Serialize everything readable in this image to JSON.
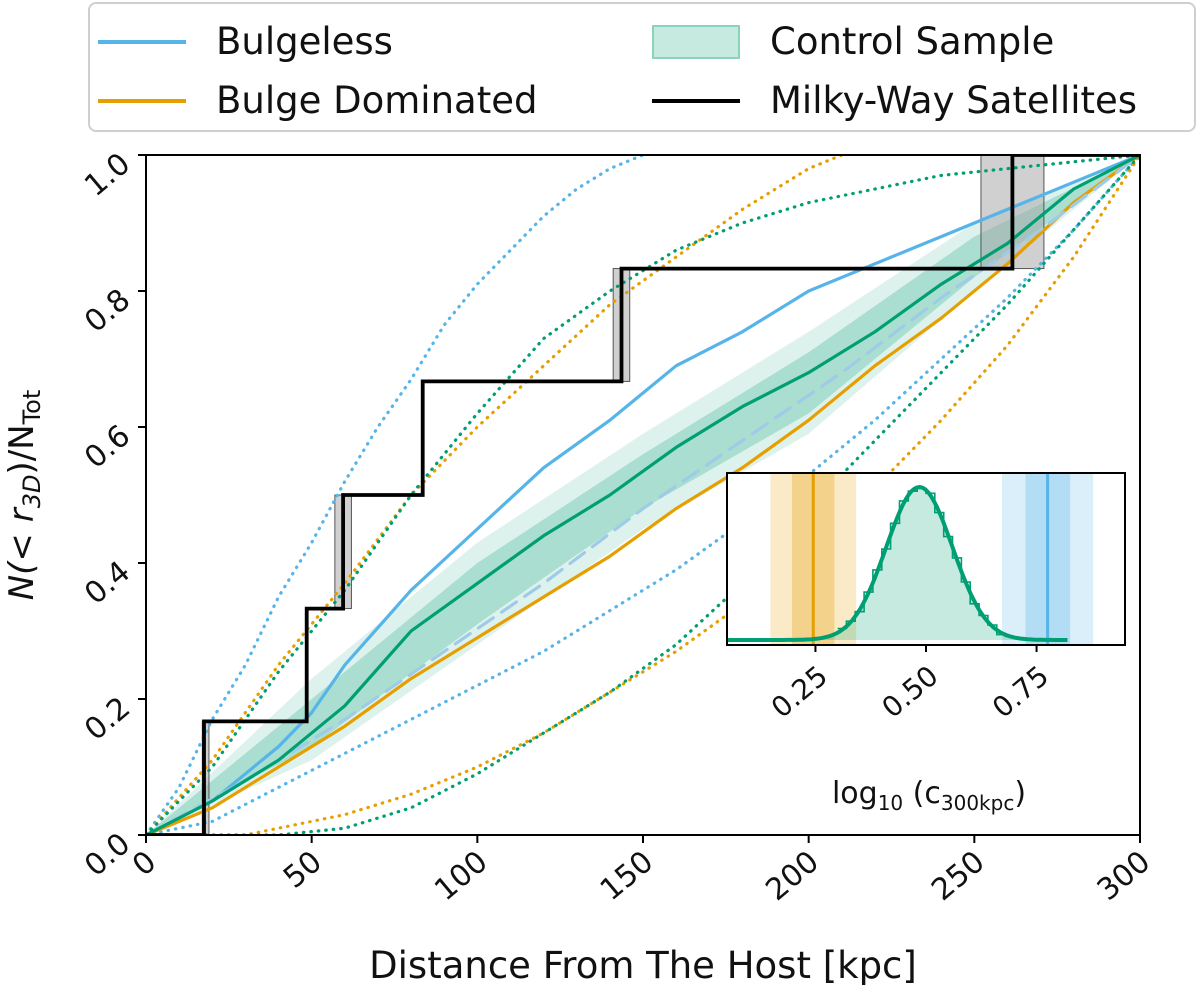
{
  "legend": {
    "items": [
      {
        "label": "Bulgeless",
        "color": "#56B4E9",
        "kind": "line"
      },
      {
        "label": "Bulge Dominated",
        "color": "#E69F00",
        "kind": "line"
      },
      {
        "label": "Control Sample",
        "color": "#009E73",
        "kind": "band"
      },
      {
        "label": "Milky-Way Satellites",
        "color": "#000000",
        "kind": "line"
      }
    ]
  },
  "chart_data": [
    {
      "type": "line",
      "xlabel": "Distance From The Host [kpc]",
      "ylabel_main": "N(< r",
      "ylabel_sub": "3D",
      "ylabel_end": ")/N",
      "ylabel_sub2": "Tot",
      "xlim": [
        0,
        300
      ],
      "ylim": [
        0,
        1
      ],
      "xticks": [
        "0",
        "50",
        "100",
        "150",
        "200",
        "250",
        "300"
      ],
      "yticks": [
        "0.0",
        "0.2",
        "0.4",
        "0.6",
        "0.8",
        "1.0"
      ],
      "grid": false,
      "legend_position": "top (outside)",
      "colors": {
        "bulgeless": "#56B4E9",
        "bulge": "#E69F00",
        "control": "#009E73",
        "mw": "#000000",
        "mw_band": "#a9a9a9"
      },
      "series": [
        {
          "name": "Bulgeless",
          "style": "solid",
          "x": [
            0,
            20,
            40,
            50,
            60,
            80,
            100,
            120,
            140,
            150,
            160,
            180,
            200,
            220,
            240,
            260,
            280,
            300
          ],
          "y": [
            0,
            0.05,
            0.13,
            0.18,
            0.25,
            0.36,
            0.45,
            0.54,
            0.61,
            0.65,
            0.69,
            0.74,
            0.8,
            0.84,
            0.88,
            0.92,
            0.96,
            1.0
          ]
        },
        {
          "name": "Bulgeless 16th percentile",
          "style": "dotted",
          "x": [
            0,
            20,
            40,
            60,
            80,
            100,
            120,
            140,
            160,
            180,
            200,
            220,
            240,
            260,
            280,
            300
          ],
          "y": [
            0,
            0.02,
            0.07,
            0.12,
            0.17,
            0.22,
            0.27,
            0.33,
            0.39,
            0.46,
            0.53,
            0.61,
            0.7,
            0.79,
            0.89,
            1.0
          ]
        },
        {
          "name": "Bulgeless 84th percentile",
          "style": "dotted",
          "x": [
            0,
            10,
            20,
            30,
            40,
            50,
            60,
            70,
            80,
            90,
            100,
            110,
            120,
            130,
            140,
            150
          ],
          "y": [
            0,
            0.07,
            0.17,
            0.25,
            0.35,
            0.43,
            0.52,
            0.6,
            0.67,
            0.75,
            0.81,
            0.86,
            0.91,
            0.95,
            0.98,
            1.0
          ]
        },
        {
          "name": "Bulge Dominated",
          "style": "solid",
          "x": [
            0,
            20,
            40,
            60,
            80,
            100,
            120,
            140,
            160,
            180,
            200,
            220,
            240,
            260,
            280,
            300
          ],
          "y": [
            0,
            0.04,
            0.1,
            0.16,
            0.23,
            0.29,
            0.35,
            0.41,
            0.48,
            0.54,
            0.61,
            0.69,
            0.76,
            0.84,
            0.93,
            1.0
          ]
        },
        {
          "name": "Bulge Dominated 16th percentile",
          "style": "dotted",
          "x": [
            0,
            30,
            60,
            80,
            100,
            120,
            140,
            160,
            180,
            200,
            220,
            240,
            260,
            280,
            300
          ],
          "y": [
            0,
            0.0,
            0.03,
            0.06,
            0.1,
            0.15,
            0.21,
            0.27,
            0.34,
            0.42,
            0.51,
            0.61,
            0.72,
            0.85,
            1.0
          ]
        },
        {
          "name": "Bulge Dominated 84th percentile",
          "style": "dotted",
          "x": [
            0,
            20,
            40,
            60,
            80,
            100,
            120,
            140,
            160,
            180,
            200,
            210
          ],
          "y": [
            0,
            0.11,
            0.25,
            0.37,
            0.5,
            0.6,
            0.69,
            0.78,
            0.85,
            0.92,
            0.98,
            1.0
          ]
        },
        {
          "name": "Control Sample median",
          "style": "dashed",
          "x": [
            0,
            30,
            60,
            90,
            120,
            150,
            180,
            210,
            240,
            270,
            300
          ],
          "y": [
            0,
            0.08,
            0.17,
            0.27,
            0.37,
            0.48,
            0.58,
            0.68,
            0.79,
            0.89,
            1.0
          ]
        },
        {
          "name": "Control Sample example",
          "style": "solid",
          "x": [
            0,
            20,
            40,
            60,
            80,
            100,
            120,
            140,
            160,
            180,
            200,
            220,
            240,
            260,
            280,
            300
          ],
          "y": [
            0,
            0.05,
            0.11,
            0.19,
            0.3,
            0.37,
            0.44,
            0.5,
            0.57,
            0.63,
            0.68,
            0.74,
            0.81,
            0.87,
            0.95,
            1.0
          ]
        },
        {
          "name": "Control Sample 16th percentile",
          "style": "dotted",
          "x": [
            0,
            40,
            60,
            80,
            100,
            120,
            140,
            160,
            180,
            200,
            220,
            240,
            260,
            280,
            300
          ],
          "y": [
            0,
            0.0,
            0.01,
            0.04,
            0.09,
            0.15,
            0.21,
            0.28,
            0.37,
            0.48,
            0.58,
            0.68,
            0.78,
            0.89,
            1.0
          ]
        },
        {
          "name": "Control Sample 84th percentile",
          "style": "dotted",
          "x": [
            0,
            20,
            40,
            60,
            80,
            100,
            120,
            140,
            160,
            180,
            200,
            220,
            240,
            260,
            280,
            300
          ],
          "y": [
            0,
            0.1,
            0.24,
            0.36,
            0.5,
            0.62,
            0.73,
            0.8,
            0.86,
            0.9,
            0.93,
            0.95,
            0.97,
            0.98,
            0.99,
            1.0
          ]
        }
      ],
      "control_band_inner": {
        "x": [
          0,
          50,
          100,
          150,
          200,
          250,
          300
        ],
        "lower": [
          0,
          0.13,
          0.31,
          0.48,
          0.62,
          0.82,
          1.0
        ],
        "upper": [
          0,
          0.2,
          0.4,
          0.56,
          0.71,
          0.88,
          1.0
        ]
      },
      "control_band_outer": {
        "x": [
          0,
          50,
          100,
          150,
          200,
          250,
          300
        ],
        "lower": [
          0,
          0.11,
          0.28,
          0.45,
          0.59,
          0.8,
          1.0
        ],
        "upper": [
          0,
          0.23,
          0.43,
          0.59,
          0.74,
          0.9,
          1.0
        ]
      },
      "milky_way_step": {
        "x": [
          0,
          17.5,
          17.5,
          48.5,
          48.5,
          59.5,
          59.5,
          83.5,
          83.5,
          143.5,
          143.5,
          261.5,
          261.5,
          300
        ],
        "y": [
          0,
          0,
          0.167,
          0.167,
          0.333,
          0.333,
          0.5,
          0.5,
          0.667,
          0.667,
          0.833,
          0.833,
          1.0,
          1.0
        ]
      },
      "milky_way_uncertainty": [
        {
          "x0": 17,
          "x1": 19,
          "y0": 0.0,
          "y1": 0.167
        },
        {
          "x0": 57,
          "x1": 62,
          "y0": 0.333,
          "y1": 0.5
        },
        {
          "x0": 141,
          "x1": 146,
          "y0": 0.667,
          "y1": 0.833
        },
        {
          "x0": 252,
          "x1": 271,
          "y0": 0.833,
          "y1": 1.0
        }
      ]
    },
    {
      "type": "histogram",
      "role": "inset",
      "xlabel_main": "log",
      "xlabel_sub": "10",
      "xlabel_mid": " (c",
      "xlabel_sub2": "300kpc",
      "xlabel_end": ")",
      "xlim": [
        0.05,
        0.95
      ],
      "xticks": [
        "0.25",
        "0.50",
        "0.75"
      ],
      "xtick_values": [
        0.25,
        0.5,
        0.75
      ],
      "control_distribution": {
        "mean": 0.485,
        "sigma": 0.075,
        "x_range": [
          0.05,
          0.82
        ]
      },
      "bulge_dominated": {
        "value": 0.245,
        "inner": [
          0.197,
          0.293
        ],
        "outer": [
          0.148,
          0.342
        ]
      },
      "bulgeless": {
        "value": 0.775,
        "inner": [
          0.725,
          0.826
        ],
        "outer": [
          0.672,
          0.878
        ]
      }
    }
  ]
}
